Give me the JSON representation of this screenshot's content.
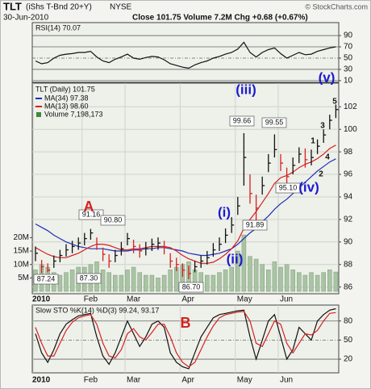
{
  "header": {
    "symbol": "TLT",
    "name": "(iShs T-Bnd 20+Y)",
    "exchange": "NYSE",
    "date": "30-Jun-2010",
    "stats": "Close 101.75 Volume 7.2M Chg +0.68 (+0.67%)",
    "source": "© StockCharts.com"
  },
  "chart_data": [
    {
      "type": "line",
      "title": "RSI(14) 70.07",
      "categories": [
        null,
        null,
        null,
        null,
        null,
        null,
        null,
        null,
        null,
        null,
        null,
        null,
        null,
        null,
        null,
        null,
        null,
        null,
        null,
        null,
        null,
        null,
        null,
        null,
        null,
        null,
        null,
        null,
        null,
        null,
        null,
        null,
        null,
        null,
        null,
        null,
        null,
        null,
        null,
        null,
        null,
        null,
        null,
        null,
        null,
        null,
        null,
        null,
        null,
        null
      ],
      "series": [
        {
          "color": "#111111",
          "values": [
            45,
            40,
            42,
            50,
            55,
            57,
            58,
            60,
            60,
            62,
            52,
            45,
            42,
            48,
            52,
            57,
            50,
            48,
            51,
            53,
            52,
            47,
            40,
            37,
            34,
            32,
            38,
            42,
            45,
            50,
            53,
            57,
            60,
            66,
            78,
            60,
            52,
            60,
            65,
            68,
            58,
            50,
            55,
            60,
            56,
            57,
            62,
            65,
            68,
            70.07
          ]
        }
      ],
      "ylim": [
        7,
        113
      ],
      "yticks": [
        10,
        30,
        50,
        70,
        90
      ],
      "grid": true
    },
    {
      "type": "ohlc",
      "legend_title": "TLT (Daily) 101.75",
      "categories": [
        "2010",
        null,
        null,
        null,
        null,
        null,
        null,
        null,
        "Feb",
        null,
        null,
        null,
        null,
        null,
        null,
        "Mar",
        null,
        null,
        null,
        null,
        null,
        null,
        null,
        null,
        "Apr",
        null,
        null,
        null,
        null,
        null,
        null,
        null,
        null,
        "May",
        null,
        null,
        null,
        null,
        null,
        null,
        "Jun",
        null,
        null,
        null,
        null,
        null,
        null,
        null,
        null,
        null
      ],
      "high": [
        89.6,
        88.4,
        88.1,
        88.8,
        89.3,
        89.8,
        90.1,
        90.4,
        90.8,
        91.16,
        90.4,
        89.5,
        88.9,
        89.3,
        90.0,
        90.8,
        90.2,
        89.8,
        90.0,
        90.3,
        90.4,
        90.1,
        89.0,
        88.6,
        88.1,
        87.9,
        88.3,
        88.8,
        89.2,
        89.9,
        90.4,
        91.2,
        92.2,
        94.0,
        99.66,
        96.0,
        94.2,
        95.8,
        97.8,
        99.55,
        97.8,
        96.6,
        97.5,
        98.4,
        98.3,
        98.2,
        99.1,
        100.0,
        101.3,
        102.2
      ],
      "low": [
        88.3,
        87.24,
        87.3,
        87.7,
        88.2,
        88.7,
        89.0,
        89.3,
        89.7,
        90.2,
        89.3,
        88.3,
        87.7,
        88.2,
        88.8,
        89.7,
        89.0,
        88.6,
        88.8,
        89.2,
        89.3,
        88.9,
        87.7,
        87.4,
        86.9,
        86.7,
        87.3,
        87.7,
        88.0,
        88.7,
        89.2,
        89.9,
        90.8,
        92.4,
        95.0,
        93.4,
        91.89,
        94.2,
        96.2,
        97.5,
        96.3,
        95.1,
        96.0,
        97.0,
        96.6,
        96.8,
        97.8,
        98.8,
        100.0,
        101.0
      ],
      "close": [
        89.0,
        87.8,
        87.5,
        88.3,
        88.8,
        89.3,
        89.6,
        89.9,
        90.3,
        90.8,
        89.8,
        88.9,
        88.3,
        88.8,
        89.4,
        90.3,
        89.6,
        89.2,
        89.4,
        89.8,
        89.9,
        89.5,
        88.3,
        88.0,
        87.5,
        87.2,
        87.8,
        88.3,
        88.6,
        89.3,
        89.8,
        90.6,
        91.5,
        93.2,
        97.5,
        94.3,
        93.0,
        95.0,
        97.0,
        98.2,
        97.0,
        95.8,
        96.8,
        97.8,
        97.3,
        97.5,
        98.5,
        99.5,
        100.8,
        101.75
      ],
      "series": [
        {
          "name": "MA(34) 97.38",
          "color": "#1f2fb8",
          "values": [
            91.6,
            91.3,
            91.0,
            90.6,
            90.3,
            90.0,
            89.8,
            89.6,
            89.5,
            89.4,
            89.4,
            89.4,
            89.3,
            89.2,
            89.2,
            89.2,
            89.3,
            89.3,
            89.4,
            89.4,
            89.5,
            89.5,
            89.4,
            89.3,
            89.2,
            89.0,
            88.9,
            88.8,
            88.8,
            88.9,
            89.0,
            89.2,
            89.4,
            89.8,
            90.3,
            90.8,
            91.2,
            91.8,
            92.3,
            92.9,
            93.4,
            93.8,
            94.3,
            94.8,
            95.3,
            95.8,
            96.3,
            96.7,
            97.1,
            97.38
          ]
        },
        {
          "name": "MA(13) 98.60",
          "color": "#d62020",
          "values": [
            89.5,
            89.2,
            88.9,
            88.7,
            88.6,
            88.6,
            88.8,
            89.0,
            89.3,
            89.6,
            89.8,
            89.8,
            89.7,
            89.5,
            89.3,
            89.3,
            89.4,
            89.4,
            89.5,
            89.6,
            89.6,
            89.6,
            89.5,
            89.2,
            88.8,
            88.5,
            88.3,
            88.1,
            88.1,
            88.2,
            88.5,
            88.9,
            89.4,
            90.1,
            91.2,
            92.0,
            92.7,
            93.5,
            94.3,
            95.2,
            95.7,
            95.9,
            96.2,
            96.6,
            96.9,
            97.1,
            97.4,
            97.8,
            98.3,
            98.6
          ]
        }
      ],
      "volume": {
        "name": "Volume 7,198,173",
        "color": "#a9c4a4",
        "values": [
          8,
          10,
          9,
          7,
          6,
          7,
          8,
          9,
          9,
          10,
          11,
          8,
          7,
          6,
          6,
          8,
          9,
          7,
          6,
          6,
          5,
          6,
          8,
          9,
          10,
          11,
          8,
          7,
          6,
          6,
          7,
          8,
          9,
          15,
          21,
          13,
          12,
          10,
          8,
          11,
          9,
          10,
          8,
          7,
          6,
          7,
          6,
          7,
          8,
          7.2
        ]
      },
      "ylim": [
        85.4,
        104.1
      ],
      "yticks": [
        86,
        88,
        90,
        92,
        94,
        96,
        98,
        100,
        102
      ],
      "vlim": [
        -0.9,
        77.5
      ],
      "vticks": [
        {
          "value": 5,
          "label": "5M"
        },
        {
          "value": 10,
          "label": "10M"
        },
        {
          "value": 15,
          "label": "15M"
        },
        {
          "value": 20,
          "label": "20M"
        }
      ],
      "annotations": [
        "91.16",
        "90.80",
        "87.24",
        "87.30",
        "86.70",
        "99.66",
        "99.55",
        "91.89",
        "95.10",
        "A",
        "(i)",
        "(ii)",
        "(iii)",
        "(iv)",
        "(v)",
        "1",
        "2",
        "3",
        "4",
        "5"
      ],
      "grid": true
    },
    {
      "type": "line",
      "title": "Slow STO %K(14) %D(3) 99.24, 93.17",
      "categories": [
        "2010",
        null,
        null,
        null,
        null,
        null,
        null,
        null,
        "Feb",
        null,
        null,
        null,
        null,
        null,
        null,
        "Mar",
        null,
        null,
        null,
        null,
        null,
        null,
        null,
        null,
        "Apr",
        null,
        null,
        null,
        null,
        null,
        null,
        null,
        null,
        "May",
        null,
        null,
        null,
        null,
        null,
        null,
        "Jun",
        null,
        null,
        null,
        null,
        null,
        null,
        null,
        null,
        null
      ],
      "series": [
        {
          "color": "#111111",
          "values": [
            60,
            30,
            15,
            35,
            60,
            75,
            82,
            88,
            90,
            92,
            55,
            25,
            12,
            30,
            55,
            80,
            60,
            40,
            55,
            75,
            80,
            70,
            30,
            15,
            8,
            5,
            30,
            55,
            70,
            85,
            90,
            92,
            94,
            96,
            97,
            55,
            20,
            50,
            80,
            90,
            55,
            20,
            35,
            70,
            60,
            50,
            80,
            90,
            97,
            99.24
          ]
        },
        {
          "color": "#d62020",
          "values": [
            70,
            45,
            25,
            25,
            45,
            65,
            78,
            85,
            88,
            90,
            75,
            45,
            25,
            22,
            35,
            60,
            68,
            55,
            50,
            62,
            75,
            75,
            55,
            30,
            15,
            8,
            15,
            35,
            55,
            72,
            85,
            90,
            92,
            94,
            95,
            80,
            45,
            40,
            60,
            80,
            75,
            45,
            30,
            45,
            60,
            58,
            65,
            80,
            92,
            93.17
          ]
        }
      ],
      "annotations": [
        "B"
      ],
      "ylim": [
        -1.5,
        105
      ],
      "yticks": [
        20,
        50,
        80
      ],
      "grid": true
    }
  ]
}
